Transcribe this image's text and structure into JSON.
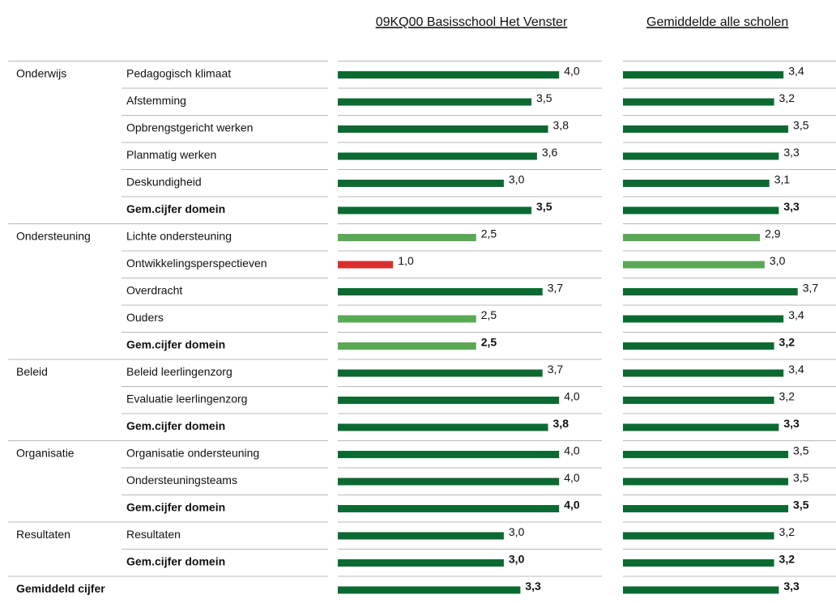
{
  "columns": [
    "09KQ00 Basisschool Het Venster",
    "Gemiddelde alle scholen"
  ],
  "domains": [
    {
      "name": "Onderwijs",
      "rows": [
        {
          "item": "Pedagogisch klimaat",
          "bold": false,
          "school": {
            "value": 4.0,
            "label": "4,0",
            "color": "#0b6a31"
          },
          "average": {
            "value": 3.4,
            "label": "3,4",
            "color": "#0b6a31"
          }
        },
        {
          "item": "Afstemming",
          "bold": false,
          "school": {
            "value": 3.5,
            "label": "3,5",
            "color": "#0b6a31"
          },
          "average": {
            "value": 3.2,
            "label": "3,2",
            "color": "#0b6a31"
          }
        },
        {
          "item": "Opbrengstgericht werken",
          "bold": false,
          "school": {
            "value": 3.8,
            "label": "3,8",
            "color": "#0b6a31"
          },
          "average": {
            "value": 3.5,
            "label": "3,5",
            "color": "#0b6a31"
          }
        },
        {
          "item": "Planmatig werken",
          "bold": false,
          "school": {
            "value": 3.6,
            "label": "3,6",
            "color": "#0b6a31"
          },
          "average": {
            "value": 3.3,
            "label": "3,3",
            "color": "#0b6a31"
          }
        },
        {
          "item": "Deskundigheid",
          "bold": false,
          "school": {
            "value": 3.0,
            "label": "3,0",
            "color": "#0b6a31"
          },
          "average": {
            "value": 3.1,
            "label": "3,1",
            "color": "#0b6a31"
          }
        },
        {
          "item": "Gem.cijfer domein",
          "bold": true,
          "school": {
            "value": 3.5,
            "label": "3,5",
            "color": "#0b6a31"
          },
          "average": {
            "value": 3.3,
            "label": "3,3",
            "color": "#0b6a31"
          }
        }
      ]
    },
    {
      "name": "Ondersteuning",
      "rows": [
        {
          "item": "Lichte ondersteuning",
          "bold": false,
          "school": {
            "value": 2.5,
            "label": "2,5",
            "color": "#5aa955"
          },
          "average": {
            "value": 2.9,
            "label": "2,9",
            "color": "#5aa955"
          }
        },
        {
          "item": "Ontwikkelingsperspectieven",
          "bold": false,
          "school": {
            "value": 1.0,
            "label": "1,0",
            "color": "#d7302c"
          },
          "average": {
            "value": 3.0,
            "label": "3,0",
            "color": "#5aa955"
          }
        },
        {
          "item": "Overdracht",
          "bold": false,
          "school": {
            "value": 3.7,
            "label": "3,7",
            "color": "#0b6a31"
          },
          "average": {
            "value": 3.7,
            "label": "3,7",
            "color": "#0b6a31"
          }
        },
        {
          "item": "Ouders",
          "bold": false,
          "school": {
            "value": 2.5,
            "label": "2,5",
            "color": "#5aa955"
          },
          "average": {
            "value": 3.4,
            "label": "3,4",
            "color": "#0b6a31"
          }
        },
        {
          "item": "Gem.cijfer domein",
          "bold": true,
          "school": {
            "value": 2.5,
            "label": "2,5",
            "color": "#5aa955"
          },
          "average": {
            "value": 3.2,
            "label": "3,2",
            "color": "#0b6a31"
          }
        }
      ]
    },
    {
      "name": "Beleid",
      "rows": [
        {
          "item": "Beleid leerlingenzorg",
          "bold": false,
          "school": {
            "value": 3.7,
            "label": "3,7",
            "color": "#0b6a31"
          },
          "average": {
            "value": 3.4,
            "label": "3,4",
            "color": "#0b6a31"
          }
        },
        {
          "item": "Evaluatie leerlingenzorg",
          "bold": false,
          "school": {
            "value": 4.0,
            "label": "4,0",
            "color": "#0b6a31"
          },
          "average": {
            "value": 3.2,
            "label": "3,2",
            "color": "#0b6a31"
          }
        },
        {
          "item": "Gem.cijfer domein",
          "bold": true,
          "school": {
            "value": 3.8,
            "label": "3,8",
            "color": "#0b6a31"
          },
          "average": {
            "value": 3.3,
            "label": "3,3",
            "color": "#0b6a31"
          }
        }
      ]
    },
    {
      "name": "Organisatie",
      "rows": [
        {
          "item": "Organisatie ondersteuning",
          "bold": false,
          "school": {
            "value": 4.0,
            "label": "4,0",
            "color": "#0b6a31"
          },
          "average": {
            "value": 3.5,
            "label": "3,5",
            "color": "#0b6a31"
          }
        },
        {
          "item": "Ondersteuningsteams",
          "bold": false,
          "school": {
            "value": 4.0,
            "label": "4,0",
            "color": "#0b6a31"
          },
          "average": {
            "value": 3.5,
            "label": "3,5",
            "color": "#0b6a31"
          }
        },
        {
          "item": "Gem.cijfer domein",
          "bold": true,
          "school": {
            "value": 4.0,
            "label": "4,0",
            "color": "#0b6a31"
          },
          "average": {
            "value": 3.5,
            "label": "3,5",
            "color": "#0b6a31"
          }
        }
      ]
    },
    {
      "name": "Resultaten",
      "rows": [
        {
          "item": "Resultaten",
          "bold": false,
          "school": {
            "value": 3.0,
            "label": "3,0",
            "color": "#0b6a31"
          },
          "average": {
            "value": 3.2,
            "label": "3,2",
            "color": "#0b6a31"
          }
        },
        {
          "item": "Gem.cijfer domein",
          "bold": true,
          "school": {
            "value": 3.0,
            "label": "3,0",
            "color": "#0b6a31"
          },
          "average": {
            "value": 3.2,
            "label": "3,2",
            "color": "#0b6a31"
          }
        }
      ]
    }
  ],
  "total": {
    "label": "Gemiddeld cijfer",
    "school": {
      "value": 3.3,
      "label": "3,3",
      "color": "#0b6a31"
    },
    "average": {
      "value": 3.3,
      "label": "3,3",
      "color": "#0b6a31"
    }
  }
}
